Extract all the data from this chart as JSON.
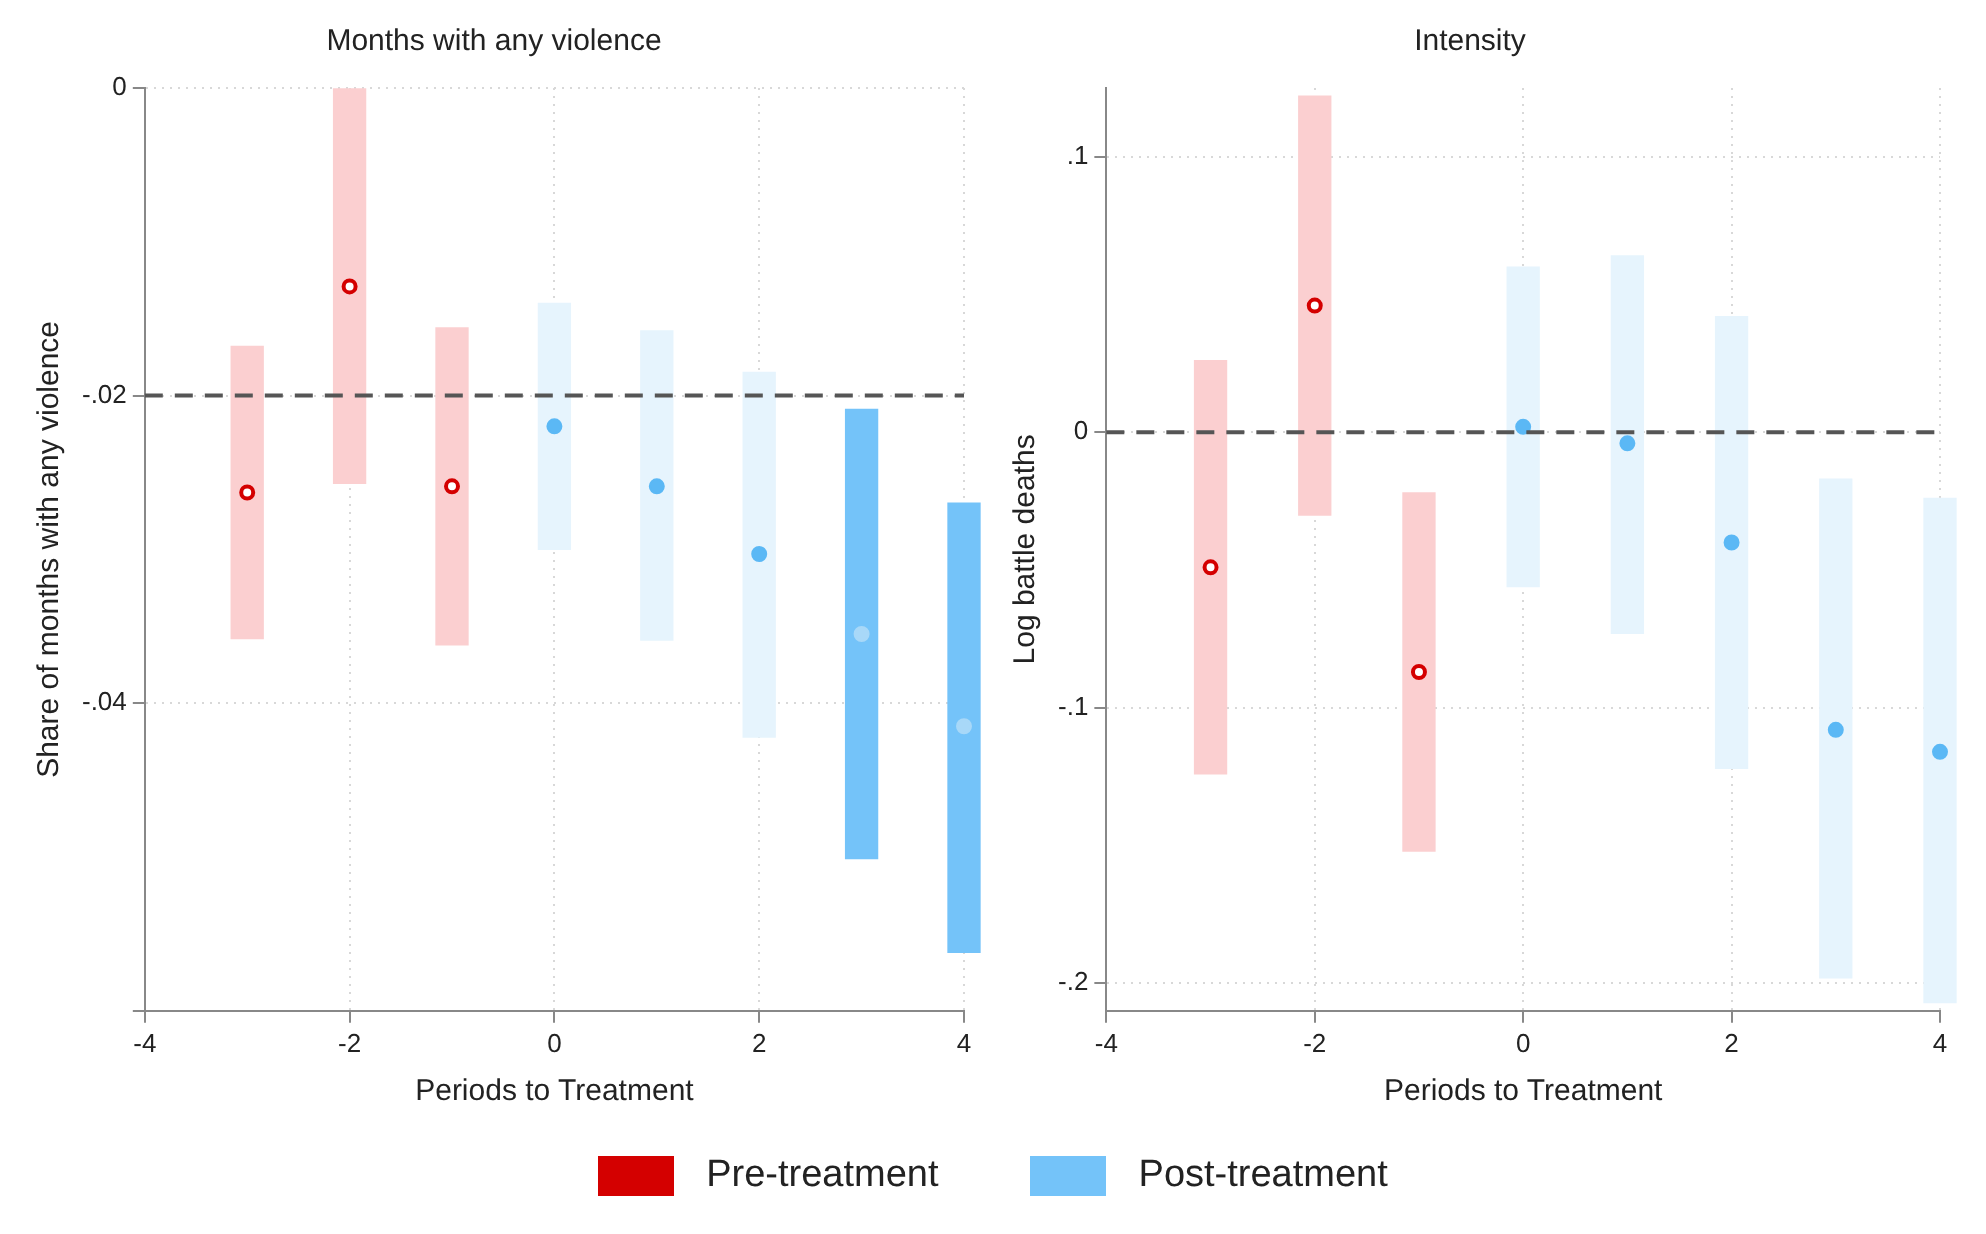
{
  "chart_data": [
    {
      "type": "scatter",
      "title": "Months with any violence",
      "xlabel": "Periods to Treatment",
      "ylabel": "Share of months with any violence",
      "xlim": [
        -4,
        4
      ],
      "xticks": [
        -4,
        -2,
        0,
        2,
        4
      ],
      "ylim": [
        -0.06,
        0
      ],
      "yticks": [
        0,
        {
          "value": -0.02,
          "label": "-.02"
        },
        {
          "value": -0.04,
          "label": "-.04"
        },
        {
          "value": -0.06,
          "label": null
        }
      ],
      "grid": true,
      "legend": "bottom",
      "marker": "circle",
      "ref_lines": [
        {
          "axis": "y",
          "value": -0.02,
          "color": "#555555",
          "line_style": "dashed"
        }
      ],
      "series": [
        {
          "type": "bar",
          "x": [
            -3,
            -2,
            -1,
            0,
            1,
            2,
            3,
            4
          ],
          "base": [
            -0.0358,
            -0.0257,
            -0.0362,
            -0.03,
            -0.0359,
            -0.0422,
            -0.0501,
            -0.0562
          ],
          "values": [
            0.019,
            0.0257,
            0.0206,
            0.016,
            0.0201,
            0.0237,
            0.0292,
            0.0292
          ],
          "colors": [
            "#fbcfd0",
            "#fbcfd0",
            "#fbcfd0",
            "#e6f4fd",
            "#e6f4fd",
            "#e6f4fd",
            "#74c3f9",
            "#74c3f9"
          ]
        },
        {
          "name": "Pre-treatment",
          "color": "#d40000",
          "x": [
            -3,
            -2,
            -1
          ],
          "values": [
            -0.0263,
            -0.0129,
            -0.0259
          ]
        },
        {
          "name": "Post-treatment",
          "color": "#74c3f9",
          "x": [
            0,
            1,
            2,
            3,
            4
          ],
          "values": [
            -0.022,
            -0.0259,
            -0.0303,
            -0.0355,
            -0.0415
          ],
          "colors": [
            "#5bb8f5",
            "#5bb8f5",
            "#5bb8f5",
            "#a8d8f8",
            "#a8d8f8"
          ]
        }
      ]
    },
    {
      "type": "scatter",
      "title": "Intensity",
      "xlabel": "Periods to Treatment",
      "ylabel": "Log battle deaths",
      "xlim": [
        -4,
        4
      ],
      "xticks": [
        -4,
        -2,
        0,
        2,
        4
      ],
      "ylim": [
        -0.21,
        0.125
      ],
      "yticks": [
        {
          "value": 0.1,
          "label": ".1"
        },
        0,
        {
          "value": -0.1,
          "label": "-.1"
        },
        {
          "value": -0.2,
          "label": "-.2"
        }
      ],
      "grid": true,
      "marker": "circle",
      "ref_lines": [
        {
          "axis": "y",
          "value": 0,
          "color": "#555555",
          "line_style": "dashed"
        }
      ],
      "series": [
        {
          "type": "bar",
          "x": [
            -3,
            -2,
            -1,
            0,
            1,
            2,
            3,
            4
          ],
          "base": [
            -0.124,
            -0.03,
            -0.152,
            -0.056,
            -0.073,
            -0.122,
            -0.198,
            -0.207
          ],
          "values": [
            0.15,
            0.152,
            0.13,
            0.116,
            0.137,
            0.164,
            0.181,
            0.183
          ],
          "colors": [
            "#fbcfd0",
            "#fbcfd0",
            "#fbcfd0",
            "#e6f4fd",
            "#e6f4fd",
            "#e6f4fd",
            "#e6f4fd",
            "#e6f4fd"
          ]
        },
        {
          "color": "#d40000",
          "x": [
            -3,
            -2,
            -1
          ],
          "values": [
            -0.049,
            0.046,
            -0.087
          ]
        },
        {
          "color": "#5bb8f5",
          "x": [
            0,
            1,
            2,
            3,
            4
          ],
          "values": [
            0.002,
            -0.004,
            -0.04,
            -0.108,
            -0.116
          ]
        }
      ]
    }
  ]
}
